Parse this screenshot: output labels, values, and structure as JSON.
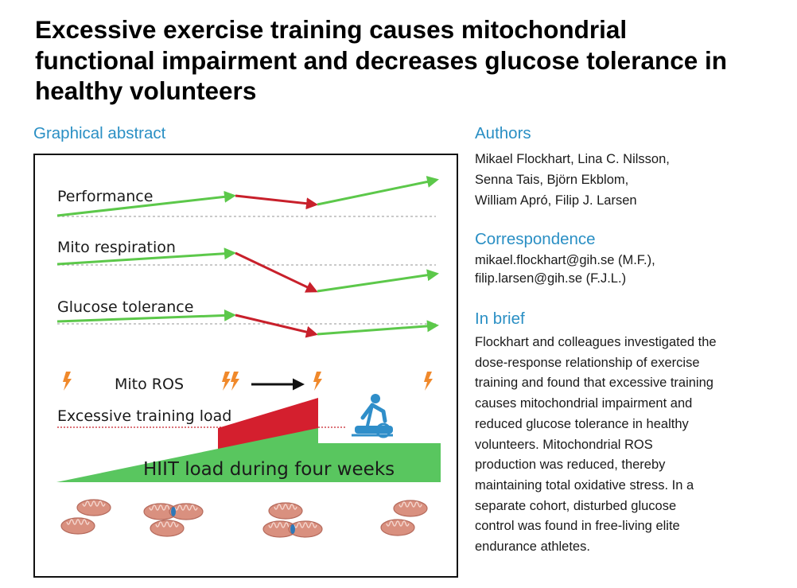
{
  "title": "Excessive exercise training causes mitochondrial functional impairment and decreases glucose tolerance in healthy volunteers",
  "graphical_abstract": {
    "heading": "Graphical abstract",
    "labels": {
      "performance": "Performance",
      "mito_respiration": "Mito respiration",
      "glucose_tolerance": "Glucose tolerance",
      "mito_ros": "Mito ROS",
      "excessive_load": "Excessive training load",
      "hiit_load": "HIIT load during four weeks"
    },
    "colors": {
      "increase_arrow": "#5cc84a",
      "decrease_arrow": "#c8202b",
      "hiit_fill": "#59c65f",
      "excess_fill": "#d41f2e",
      "lightning": "#f0892b",
      "mitochondria": "#d9907f",
      "fission": "#2e78b8",
      "cyclist": "#2f8ec9"
    },
    "icons": [
      "lightning-icon",
      "arrow-icon",
      "cyclist-icon",
      "mitochondria-icon"
    ]
  },
  "authors": {
    "heading": "Authors",
    "lines": [
      "Mikael Flockhart, Lina C. Nilsson,",
      "Senna Tais, Björn Ekblom,",
      "William Apró, Filip J. Larsen"
    ]
  },
  "correspondence": {
    "heading": "Correspondence",
    "lines": [
      "mikael.flockhart@gih.se (M.F.),",
      "filip.larsen@gih.se (F.J.L.)"
    ]
  },
  "in_brief": {
    "heading": "In brief",
    "lines": [
      "Flockhart and colleagues investigated the",
      "dose-response relationship of exercise",
      "training and found that excessive training",
      "causes mitochondrial impairment and",
      "reduced glucose tolerance in healthy",
      "volunteers. Mitochondrial ROS",
      "production was reduced, thereby",
      "maintaining total oxidative stress. In a",
      "separate cohort, disturbed glucose",
      "control was found in free-living elite",
      "endurance athletes."
    ]
  }
}
